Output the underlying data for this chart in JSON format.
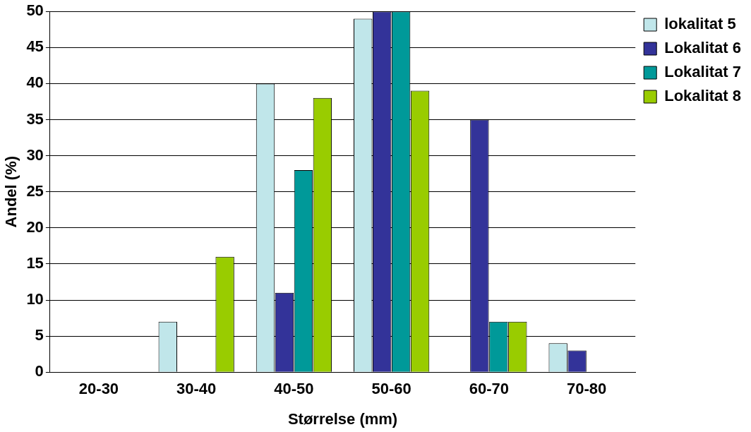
{
  "chart_data": {
    "type": "bar",
    "xlabel": "Størrelse (mm)",
    "ylabel": "Andel (%)",
    "categories": [
      "20-30",
      "30-40",
      "40-50",
      "50-60",
      "60-70",
      "70-80"
    ],
    "series": [
      {
        "name": "lokalitat 5",
        "color": "#c0e6ea",
        "values": [
          0,
          7,
          40,
          49,
          0,
          4
        ]
      },
      {
        "name": "Lokalitat 6",
        "color": "#333399",
        "values": [
          0,
          0,
          11,
          50,
          35,
          3
        ]
      },
      {
        "name": "Lokalitat 7",
        "color": "#009999",
        "values": [
          0,
          0,
          28,
          50,
          7,
          0
        ]
      },
      {
        "name": "Lokalitat 8",
        "color": "#99cc00",
        "values": [
          0,
          16,
          38,
          39,
          7,
          0
        ]
      }
    ],
    "ylim": [
      0,
      50
    ],
    "yticks": [
      0,
      5,
      10,
      15,
      20,
      25,
      30,
      35,
      40,
      45,
      50
    ],
    "grid": "y",
    "legend": "right"
  }
}
